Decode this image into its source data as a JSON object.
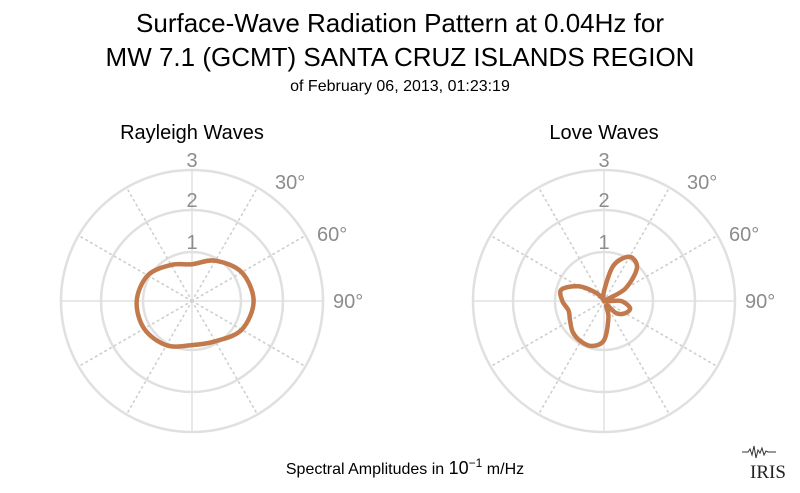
{
  "title": {
    "line1": "Surface-Wave Radiation Pattern at 0.04Hz for",
    "line2": "MW 7.1 (GCMT) SANTA CRUZ ISLANDS REGION",
    "line3": "of February 06, 2013, 01:23:19"
  },
  "footer": {
    "prefix": "Spectral Amplitudes in ",
    "base": "10",
    "exponent": "−1",
    "suffix": " m/Hz"
  },
  "logo": {
    "text": "IRIS"
  },
  "colors": {
    "curve": "#c27a4c",
    "grid": "#e0e0e0",
    "tick": "#8c8c8c"
  },
  "chart_data": [
    {
      "type": "polar-line",
      "title": "Rayleigh Waves",
      "r_ticks": [
        "1",
        "2",
        "3"
      ],
      "r_max": 3,
      "angle_ticks": [
        "30°",
        "60°",
        "90°"
      ],
      "grid": true,
      "series": [
        {
          "theta_deg": [
            0,
            30,
            60,
            90,
            120,
            150,
            180,
            210,
            240,
            270,
            300,
            330
          ],
          "r": [
            0.75,
            0.95,
            1.2,
            1.3,
            1.2,
            0.95,
            0.9,
            1.05,
            1.15,
            1.15,
            1.05,
            0.85
          ]
        }
      ]
    },
    {
      "type": "polar-line",
      "title": "Love Waves",
      "r_ticks": [
        "1",
        "2",
        "3"
      ],
      "r_max": 3,
      "angle_ticks": [
        "30°",
        "60°",
        "90°"
      ],
      "grid": true,
      "series": [
        {
          "theta_deg": [
            0,
            15,
            30,
            45,
            60,
            75,
            90,
            105,
            120,
            135,
            150,
            165,
            180,
            195,
            210,
            225,
            240,
            255,
            270,
            285,
            300,
            315,
            330,
            345
          ],
          "r": [
            0.2,
            0.75,
            1.05,
            0.95,
            0.5,
            0.05,
            0.35,
            0.55,
            0.5,
            0.35,
            0.1,
            0.35,
            0.8,
            0.95,
            0.95,
            0.9,
            0.8,
            0.75,
            0.85,
            0.9,
            0.6,
            0.25,
            0.05,
            0.0
          ]
        }
      ]
    }
  ]
}
